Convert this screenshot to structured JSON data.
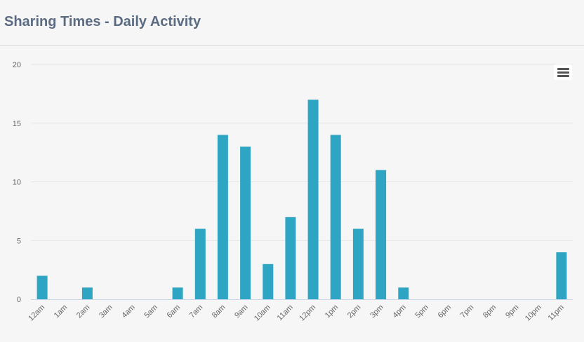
{
  "header": {
    "title": "Sharing Times - Daily Activity"
  },
  "chart_menu": {
    "icon": "hamburger-menu-icon"
  },
  "colors": {
    "bar": "#2ea5c3",
    "grid": "#e4e4e4",
    "axis_line": "#ccd6eb",
    "tick_text": "#666666",
    "title": "#5b6b82"
  },
  "chart_data": {
    "type": "bar",
    "categories": [
      "12am",
      "1am",
      "2am",
      "3am",
      "4am",
      "5am",
      "6am",
      "7am",
      "8am",
      "9am",
      "10am",
      "11am",
      "12pm",
      "1pm",
      "2pm",
      "3pm",
      "4pm",
      "5pm",
      "6pm",
      "7pm",
      "8pm",
      "9pm",
      "10pm",
      "11pm"
    ],
    "values": [
      2,
      0,
      1,
      0,
      0,
      0,
      1,
      6,
      14,
      13,
      3,
      7,
      17,
      14,
      6,
      11,
      1,
      0,
      0,
      0,
      0,
      0,
      0,
      4
    ],
    "ylim": [
      0,
      20
    ],
    "yticks": [
      0,
      5,
      10,
      15,
      20
    ],
    "grid": true,
    "legend": "none"
  }
}
